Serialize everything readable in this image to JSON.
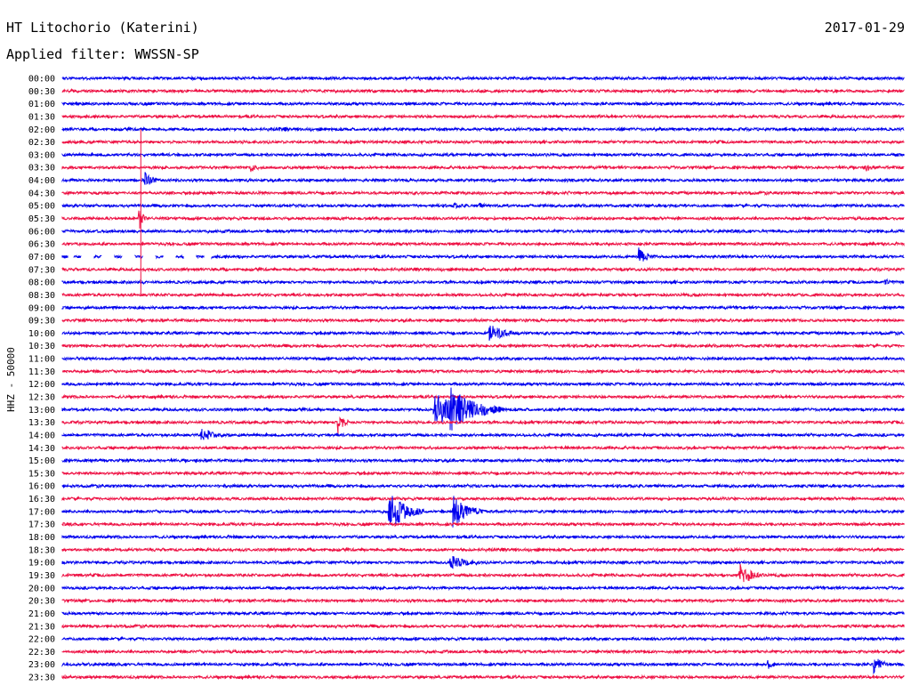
{
  "header": {
    "station": "HT Litochorio (Katerini)",
    "filter": "Applied filter: WWSSN-SP",
    "date": "2017-01-29"
  },
  "chart_data": {
    "type": "line",
    "ylabel": "HHZ - 50000",
    "rows": [
      "00:00",
      "00:30",
      "01:00",
      "01:30",
      "02:00",
      "02:30",
      "03:00",
      "03:30",
      "04:00",
      "04:30",
      "05:00",
      "05:30",
      "06:00",
      "06:30",
      "07:00",
      "07:30",
      "08:00",
      "08:30",
      "09:00",
      "09:30",
      "10:00",
      "10:30",
      "11:00",
      "11:30",
      "12:00",
      "12:30",
      "13:00",
      "13:30",
      "14:00",
      "14:30",
      "15:00",
      "15:30",
      "16:00",
      "16:30",
      "17:00",
      "17:30",
      "18:00",
      "18:30",
      "19:00",
      "19:30",
      "20:00",
      "20:30",
      "21:00",
      "21:30",
      "22:00",
      "22:30",
      "23:00",
      "23:30"
    ],
    "row_colors": [
      "#0000ee",
      "#ee1144"
    ],
    "x_range_minutes": [
      0,
      30
    ],
    "events": [
      {
        "row": "02:00",
        "minute": 7.8,
        "amplitude": 3,
        "duration": 0.8
      },
      {
        "row": "03:30",
        "minute": 6.8,
        "amplitude": 4,
        "duration": 0.6
      },
      {
        "row": "03:30",
        "minute": 28.7,
        "amplitude": 4,
        "duration": 0.4
      },
      {
        "row": "04:00",
        "minute": 3.0,
        "amplitude": 8,
        "duration": 0.6
      },
      {
        "row": "05:00",
        "minute": 14.0,
        "amplitude": 3,
        "duration": 1.0
      },
      {
        "row": "05:00",
        "minute": 14.9,
        "amplitude": 3,
        "duration": 0.6
      },
      {
        "row": "05:30",
        "minute": 2.8,
        "amplitude": 10,
        "duration": 0.2
      },
      {
        "row": "07:00",
        "minute": 20.6,
        "amplitude": 9,
        "duration": 0.6
      },
      {
        "row": "08:00",
        "minute": 29.4,
        "amplitude": 3,
        "duration": 0.6
      },
      {
        "row": "10:00",
        "minute": 15.3,
        "amplitude": 9,
        "duration": 1.2
      },
      {
        "row": "13:00",
        "minute": 13.3,
        "amplitude": 18,
        "duration": 2.5
      },
      {
        "row": "13:00",
        "minute": 13.9,
        "amplitude": 24,
        "duration": 1.8
      },
      {
        "row": "13:30",
        "minute": 9.9,
        "amplitude": 12,
        "duration": 0.3
      },
      {
        "row": "14:00",
        "minute": 5.0,
        "amplitude": 7,
        "duration": 1.2
      },
      {
        "row": "17:00",
        "minute": 11.7,
        "amplitude": 20,
        "duration": 1.2
      },
      {
        "row": "17:00",
        "minute": 14.0,
        "amplitude": 16,
        "duration": 1.0
      },
      {
        "row": "18:00",
        "minute": 6.1,
        "amplitude": 3,
        "duration": 0.3
      },
      {
        "row": "19:00",
        "minute": 13.9,
        "amplitude": 8,
        "duration": 1.2
      },
      {
        "row": "19:30",
        "minute": 24.2,
        "amplitude": 12,
        "duration": 0.8
      },
      {
        "row": "23:00",
        "minute": 25.2,
        "amplitude": 5,
        "duration": 0.3
      },
      {
        "row": "23:00",
        "minute": 29.0,
        "amplitude": 8,
        "duration": 0.6
      }
    ],
    "gaps": [
      {
        "row": "07:00",
        "minute_start": 0.2,
        "minute_end": 5.3
      }
    ],
    "spikes": [
      {
        "row": "02:00",
        "minute": 2.8,
        "to_row": "08:30"
      }
    ]
  }
}
